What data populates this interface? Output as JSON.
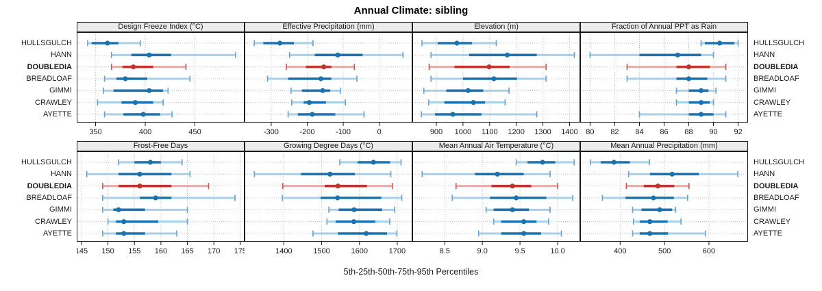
{
  "chart_data": {
    "type": "dot-interval trellis (percentile plot)",
    "title": "Annual Climate: sibling",
    "xlabel": "5th-25th-50th-75th-95th Percentiles",
    "percentile_labels": [
      "5th",
      "25th",
      "50th",
      "75th",
      "95th"
    ],
    "sites": [
      "HULLSGULCH",
      "HANN",
      "DOUBLEDIA",
      "BREADLOAF",
      "GIMMI",
      "CRAWLEY",
      "AYETTE"
    ],
    "highlight_site": "DOUBLEDIA",
    "legend_position": "none",
    "grid": "dotted",
    "colors": {
      "site_normal": "#1b72ae",
      "site_normal_light": "#a9cfe8",
      "site_normal_cap": "#6aa6d1",
      "site_highlight": "#bf352d",
      "site_highlight_light": "#e7aca6",
      "site_highlight_cap": "#cc5a51",
      "grid_line": "#c9c9c9",
      "panel_border": "#1a1a1a",
      "header_bg": "#ececec",
      "tick_text": "#1a1a1a"
    },
    "panels": [
      {
        "title": "Design Freeze Index (°C)",
        "xlim": [
          331,
          500
        ],
        "ticks": [
          350,
          400,
          450
        ],
        "tick_labels": [
          "350",
          "400",
          "450"
        ],
        "values": {
          "HULLSGULCH": [
            342,
            346,
            362,
            373,
            395
          ],
          "HANN": [
            366,
            386,
            404,
            426,
            491
          ],
          "DOUBLEDIA": [
            366,
            377,
            388,
            408,
            441
          ],
          "BREADLOAF": [
            359,
            371,
            380,
            402,
            445
          ],
          "GIMMI": [
            358,
            368,
            404,
            418,
            423
          ],
          "CRAWLEY": [
            352,
            376,
            390,
            408,
            418
          ],
          "AYETTE": [
            359,
            378,
            398,
            415,
            427
          ]
        }
      },
      {
        "title": "Effective Precipitation (mm)",
        "xlim": [
          -374,
          92
        ],
        "ticks": [
          -300,
          -200,
          -100,
          0
        ],
        "tick_labels": [
          "-300",
          "-200",
          "-100",
          "0"
        ],
        "values": {
          "HULLSGULCH": [
            -347,
            -322,
            -276,
            -237,
            -184
          ],
          "HANN": [
            -249,
            -179,
            -115,
            -46,
            66
          ],
          "DOUBLEDIA": [
            -258,
            -204,
            -154,
            -133,
            -69
          ],
          "BREADLOAF": [
            -310,
            -253,
            -162,
            -133,
            -62
          ],
          "GIMMI": [
            -245,
            -215,
            -157,
            -136,
            -108
          ],
          "CRAWLEY": [
            -243,
            -210,
            -194,
            -148,
            -94
          ],
          "AYETTE": [
            -253,
            -226,
            -186,
            -122,
            -42
          ]
        }
      },
      {
        "title": "Elevation (m)",
        "xlim": [
          810,
          1440
        ],
        "ticks": [
          900,
          1000,
          1100,
          1200,
          1300,
          1400
        ],
        "tick_labels": [
          "900",
          "1000",
          "1100",
          "1200",
          "1300",
          "1400"
        ],
        "values": {
          "HULLSGULCH": [
            846,
            905,
            977,
            1034,
            1125
          ],
          "HANN": [
            880,
            1023,
            1166,
            1277,
            1418
          ],
          "DOUBLEDIA": [
            873,
            968,
            1098,
            1175,
            1312
          ],
          "BREADLOAF": [
            880,
            1000,
            1116,
            1203,
            1312
          ],
          "GIMMI": [
            853,
            937,
            1019,
            1076,
            1173
          ],
          "CRAWLEY": [
            871,
            930,
            1039,
            1083,
            1158
          ],
          "AYETTE": [
            844,
            895,
            962,
            1069,
            1277
          ]
        }
      },
      {
        "title": "Fraction of Annual PPT as Rain",
        "xlim": [
          79.2,
          92.8
        ],
        "ticks": [
          80,
          82,
          84,
          86,
          88,
          90,
          92
        ],
        "tick_labels": [
          "80",
          "82",
          "84",
          "86",
          "88",
          "90",
          "92"
        ],
        "values": {
          "HULLSGULCH": [
            89,
            89.3,
            90.5,
            91.7,
            92
          ],
          "HANN": [
            80,
            84,
            87.1,
            89,
            90
          ],
          "DOUBLEDIA": [
            83,
            87,
            88,
            89.7,
            91
          ],
          "BREADLOAF": [
            83,
            87,
            88,
            89.5,
            91
          ],
          "GIMMI": [
            87,
            88,
            89,
            89.6,
            90.2
          ],
          "CRAWLEY": [
            87,
            88,
            89,
            89.7,
            90
          ],
          "AYETTE": [
            84,
            88,
            89,
            90,
            91
          ]
        }
      },
      {
        "title": "Frost-Free Days",
        "xlim": [
          144.1,
          175.8
        ],
        "ticks": [
          145,
          150,
          155,
          160,
          165,
          170,
          175
        ],
        "tick_labels": [
          "145",
          "150",
          "155",
          "160",
          "165",
          "170",
          "175"
        ],
        "values": {
          "HULLSGULCH": [
            152,
            155,
            158,
            160,
            164
          ],
          "HANN": [
            146,
            152,
            156,
            162,
            165.5
          ],
          "DOUBLEDIA": [
            149,
            152,
            156,
            162,
            169
          ],
          "BREADLOAF": [
            149,
            156,
            159,
            162,
            174
          ],
          "GIMMI": [
            149,
            151,
            152,
            157,
            165
          ],
          "CRAWLEY": [
            150,
            151.5,
            153,
            159.5,
            165
          ],
          "AYETTE": [
            149,
            151.5,
            153,
            157,
            163
          ]
        }
      },
      {
        "title": "Growing Degree Days (°C)",
        "xlim": [
          1296,
          1740
        ],
        "ticks": [
          1400,
          1500,
          1600,
          1700
        ],
        "tick_labels": [
          "1400",
          "1500",
          "1600",
          "1700"
        ],
        "values": {
          "HULLSGULCH": [
            1548,
            1595,
            1637,
            1681,
            1710
          ],
          "HANN": [
            1322,
            1445,
            1522,
            1588,
            1683
          ],
          "DOUBLEDIA": [
            1397,
            1508,
            1543,
            1620,
            1687
          ],
          "BREADLOAF": [
            1396,
            1497,
            1542,
            1658,
            1712
          ],
          "GIMMI": [
            1519,
            1545,
            1586,
            1660,
            1693
          ],
          "CRAWLEY": [
            1514,
            1537,
            1585,
            1642,
            1680
          ],
          "AYETTE": [
            1477,
            1543,
            1618,
            1673,
            1699
          ]
        }
      },
      {
        "title": "Mean Annual Air Temperature (°C)",
        "xlim": [
          8.07,
          10.3
        ],
        "ticks": [
          8.5,
          9.0,
          9.5,
          10.0
        ],
        "tick_labels": [
          "8.5",
          "9.0",
          "9.5",
          "10.0"
        ],
        "values": {
          "HULLSGULCH": [
            9.45,
            9.6,
            9.8,
            9.97,
            10.22
          ],
          "HANN": [
            8.2,
            8.9,
            9.2,
            9.55,
            9.9
          ],
          "DOUBLEDIA": [
            8.65,
            9.12,
            9.4,
            9.65,
            10.0
          ],
          "BREADLOAF": [
            8.6,
            9.1,
            9.45,
            9.85,
            10.2
          ],
          "GIMMI": [
            9.05,
            9.15,
            9.4,
            9.62,
            9.9
          ],
          "CRAWLEY": [
            9.15,
            9.25,
            9.55,
            9.72,
            9.88
          ],
          "AYETTE": [
            8.95,
            9.25,
            9.55,
            9.78,
            10.05
          ]
        }
      },
      {
        "title": "Mean Annual Precipitation (mm)",
        "xlim": [
          310,
          688
        ],
        "ticks": [
          400,
          500,
          600
        ],
        "tick_labels": [
          "400",
          "500",
          "600"
        ],
        "values": {
          "HULLSGULCH": [
            333,
            356,
            386,
            422,
            466
          ],
          "HANN": [
            419,
            467,
            517,
            577,
            665
          ],
          "DOUBLEDIA": [
            414,
            453,
            485,
            522,
            555
          ],
          "BREADLOAF": [
            360,
            412,
            475,
            521,
            552
          ],
          "GIMMI": [
            428,
            448,
            489,
            517,
            525
          ],
          "CRAWLEY": [
            430,
            444,
            467,
            507,
            537
          ],
          "AYETTE": [
            428,
            444,
            467,
            508,
            592
          ]
        }
      }
    ]
  }
}
